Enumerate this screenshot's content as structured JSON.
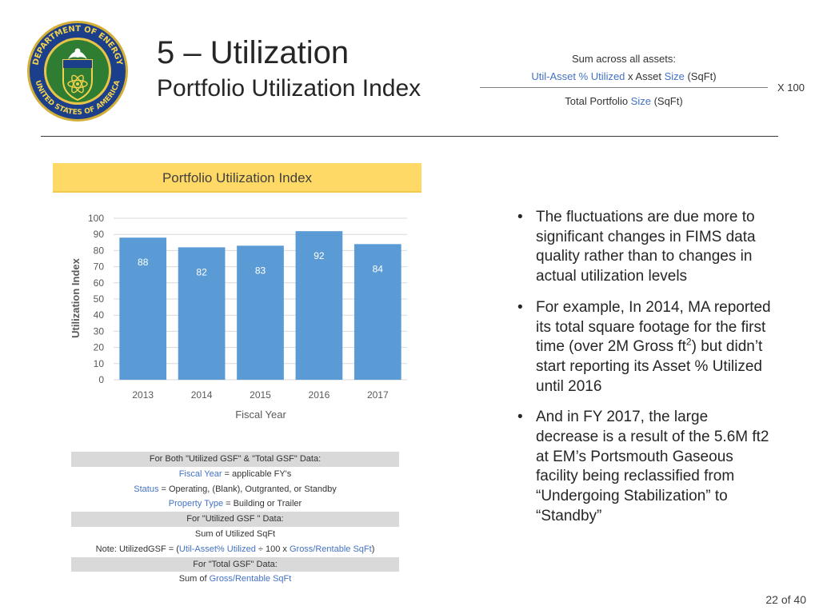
{
  "header": {
    "title": "5 – Utilization",
    "subtitle": "Portfolio Utilization Index",
    "seal": {
      "ring_text_top": "DEPARTMENT OF ENERGY",
      "ring_text_bottom": "UNITED STATES OF AMERICA"
    }
  },
  "formula": {
    "top": "Sum across all assets:",
    "numerator_a": "Util-Asset % Utilized",
    "numerator_x": " x  Asset ",
    "numerator_size": "Size",
    "numerator_unit": " (SqFt)",
    "denominator_a": "Total Portfolio ",
    "denominator_size": "Size",
    "denominator_unit": " (SqFt)",
    "multiplier": "X  100"
  },
  "chart_header": "Portfolio Utilization Index",
  "chart_data": {
    "type": "bar",
    "categories": [
      "2013",
      "2014",
      "2015",
      "2016",
      "2017"
    ],
    "values": [
      88,
      82,
      83,
      92,
      84
    ],
    "data_labels": [
      "88",
      "82",
      "83",
      "92",
      "84"
    ],
    "title": "",
    "xlabel": "Fiscal Year",
    "ylabel": "Utilization Index",
    "ylim": [
      0,
      100
    ],
    "yticks": [
      "0",
      "10",
      "20",
      "30",
      "40",
      "50",
      "60",
      "70",
      "80",
      "90",
      "100"
    ],
    "grid": true,
    "bar_color": "#5b9bd5"
  },
  "legend_table": {
    "r1": "For Both \"Utilized GSF\" & \"Total GSF\" Data:",
    "r2_a": "Fiscal Year",
    "r2_b": " = applicable FY's",
    "r3_a": "Status",
    "r3_b": " = Operating, (Blank), Outgranted, or Standby",
    "r4_a": "Property Type",
    "r4_b": " = Building or Trailer",
    "r5": "For \"Utilized GSF \" Data:",
    "r6": "Sum of Utilized SqFt",
    "r7_a": "Note: UtilizedGSF = (",
    "r7_b": "Util-Asset% Utilized",
    "r7_c": " ÷ 100 x ",
    "r7_d": "Gross/Rentable SqFt",
    "r7_e": ")",
    "r8": "For \"Total GSF\" Data:",
    "r9_a": "Sum of ",
    "r9_b": "Gross/Rentable SqFt"
  },
  "bullets": {
    "b1": "The fluctuations are due more to significant changes in FIMS data quality rather than to changes in actual utilization levels",
    "b2_a": "For example, In 2014, MA reported its total square footage for the first time (over 2M Gross ft",
    "b2_sup": "2",
    "b2_b": ") but didn’t start reporting its Asset % Utilized until 2016",
    "b3": "And in FY 2017, the large decrease is a result of the 5.6M ft2 at EM’s Portsmouth Gaseous facility being reclassified from “Undergoing Stabilization” to “Standby”"
  },
  "page_number": "22 of 40",
  "colors": {
    "accent_blue": "#4472c4",
    "header_yellow": "#ffd966",
    "bar_blue": "#5b9bd5",
    "seal_gold": "#d4af37",
    "seal_navy": "#1b3f8b",
    "seal_green": "#2e7d32"
  }
}
